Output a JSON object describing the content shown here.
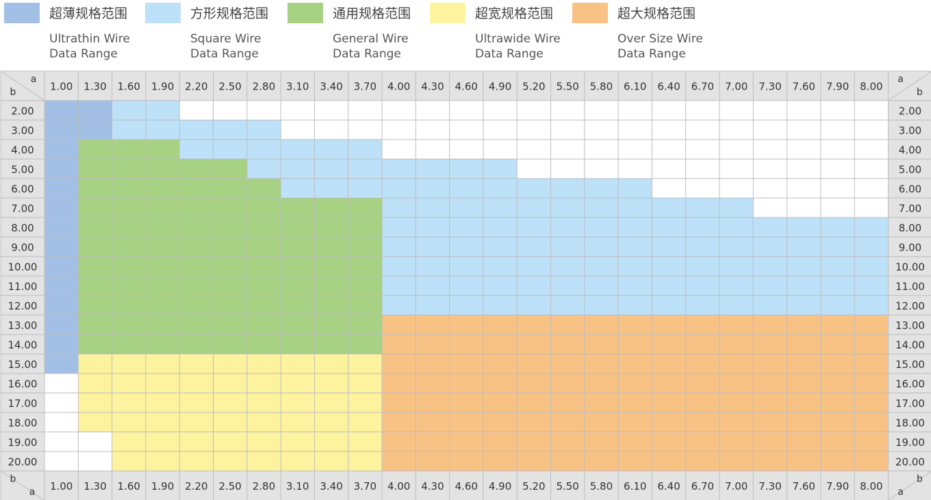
{
  "legend": [
    {
      "key": "ultrathin",
      "cn": "超薄规格范围",
      "en1": "Ultrathin Wire",
      "en2": "Data Range",
      "color": "#a2c0e6"
    },
    {
      "key": "square",
      "cn": "方形规格范围",
      "en1": "Square Wire",
      "en2": "Data Range",
      "color": "#bde1f8"
    },
    {
      "key": "general",
      "cn": "通用规格范围",
      "en1": "General Wire",
      "en2": "Data Range",
      "color": "#a7d183"
    },
    {
      "key": "ultrawide",
      "cn": "超宽规格范围",
      "en1": "Ultrawide Wire",
      "en2": "Data Range",
      "color": "#fdf39e"
    },
    {
      "key": "oversize",
      "cn": "超大规格范围",
      "en1": "Over Size Wire",
      "en2": "Data Range",
      "color": "#f8c285"
    }
  ],
  "chart_data": {
    "type": "heatmap",
    "corner_labels": {
      "a": "a",
      "b": "b"
    },
    "a_values": [
      "1.00",
      "1.30",
      "1.60",
      "1.90",
      "2.20",
      "2.50",
      "2.80",
      "3.10",
      "3.40",
      "3.70",
      "4.00",
      "4.30",
      "4.60",
      "4.90",
      "5.20",
      "5.50",
      "5.80",
      "6.10",
      "6.40",
      "6.70",
      "7.00",
      "7.30",
      "7.60",
      "7.90",
      "8.00"
    ],
    "b_values": [
      "2.00",
      "3.00",
      "4.00",
      "5.00",
      "6.00",
      "7.00",
      "8.00",
      "9.00",
      "10.00",
      "11.00",
      "12.00",
      "13.00",
      "14.00",
      "15.00",
      "16.00",
      "17.00",
      "18.00",
      "19.00",
      "20.00"
    ],
    "categories": [
      "ultrathin",
      "square",
      "general",
      "ultrawide",
      "oversize"
    ],
    "cell_categories": [
      "UUSS.....................",
      "UUSSSSS..................",
      "UGGGSSSSSS...............",
      "UGGGGGSSSSSSSS...........",
      "UGGGGGGSSSSSSSSSSS.......",
      "UGGGGGGGGGSSSSSSSSSSS....",
      "UGGGGGGGGGSSSSSSSSSSSSSSS",
      "UGGGGGGGGGSSSSSSSSSSSSSSS",
      "UGGGGGGGGGSSSSSSSSSSSSSSS",
      "UGGGGGGGGGSSSSSSSSSSSSSSS",
      "UGGGGGGGGGSSSSSSSSSSSSSSS",
      "UGGGGGGGGGOOOOOOOOOOOOOOO",
      "UGGGGGGGGGOOOOOOOOOOOOOOO",
      "UWWWWWWWWWOOOOOOOOOOOOOOO",
      ".WWWWWWWWWOOOOOOOOOOOOOOO",
      ".WWWWWWWWWOOOOOOOOOOOOOOO",
      ".WWWWWWWWWOOOOOOOOOOOOOOO",
      "..WWWWWWWWOOOOOOOOOOOOOOO",
      "..WWWWWWWWOOOOOOOOOOOOOOO"
    ],
    "cell_code_legend": {
      "U": "ultrathin",
      "S": "square",
      "G": "general",
      "W": "ultrawide",
      "O": "oversize",
      ".": "none"
    },
    "colors": {
      "header_bg": "#e3e3e3",
      "grid_line": "#bdbdbd",
      "empty": "#ffffff"
    }
  }
}
